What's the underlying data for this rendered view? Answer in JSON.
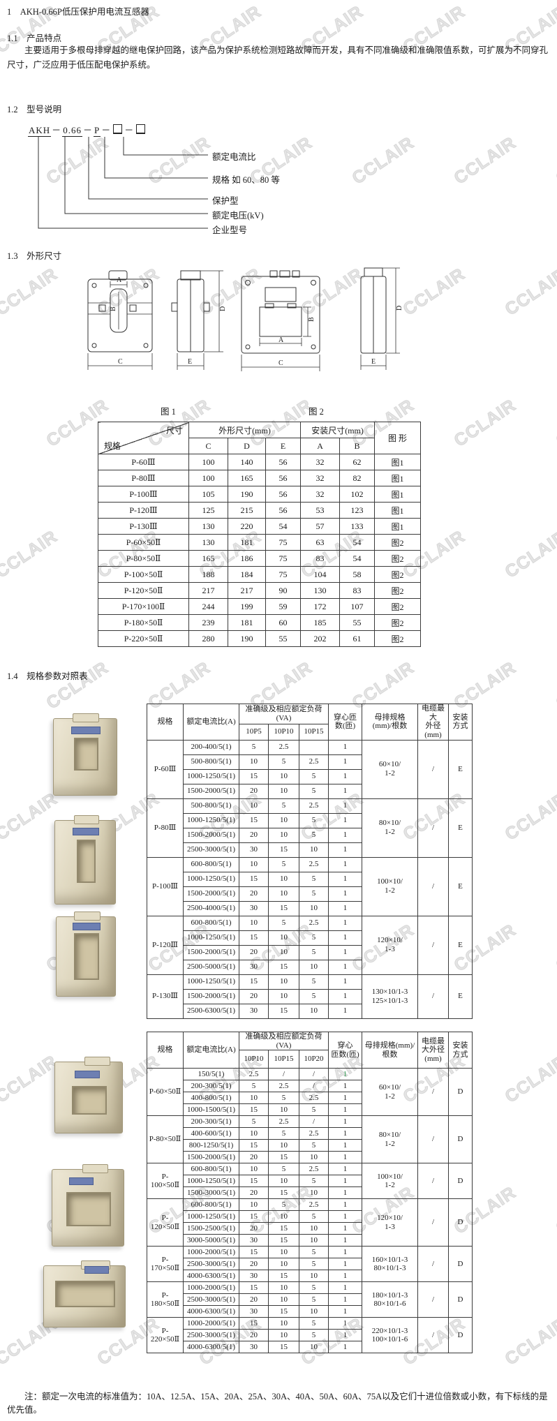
{
  "watermark": {
    "text": "CCLAIR"
  },
  "doc": {
    "title": "1　AKH-0.66P低压保护用电流互感器",
    "note": "注：额定一次电流的标准值为：10A、12.5A、15A、20A、25A、30A、40A、50A、60A、75A以及它们十进位倍数或小数，有下标线的是优先值。"
  },
  "section_1_1": {
    "heading": "1.1　产品特点",
    "paragraph": "主要适用于多根母排穿越的继电保护回路，该产品为保护系统检测短路故障而开发，具有不同准确级和准确限值系数，可扩展为不同穿孔尺寸，广泛应用于低压配电保护系统。"
  },
  "section_1_2": {
    "heading": "1.2　型号说明",
    "model_parts": [
      {
        "text": "AKH",
        "underline": true
      },
      {
        "text": "－"
      },
      {
        "text": "0.66",
        "underline": true
      },
      {
        "text": "－"
      },
      {
        "text": "P",
        "underline": true
      },
      {
        "text": "－"
      },
      {
        "box": true
      },
      {
        "text": "－"
      },
      {
        "box": true
      }
    ],
    "model_labels": [
      "额定电流比",
      "规格 如 60、80 等",
      "保护型",
      "额定电压(kV)",
      "企业型号"
    ]
  },
  "section_1_3": {
    "heading": "1.3　外形尺寸",
    "fig1_caption": "图 1",
    "fig2_caption": "图 2",
    "dims": {
      "A": "A",
      "B": "B",
      "C": "C",
      "D": "D",
      "E": "E"
    },
    "dim_table": {
      "corner_top": "尺寸",
      "corner_bottom": "规格",
      "group1": "外形尺寸(mm)",
      "group2": "安装尺寸(mm)",
      "cols": [
        "C",
        "D",
        "E",
        "A",
        "B"
      ],
      "last_col": "图 形",
      "rows": [
        [
          "P-60Ⅲ",
          "100",
          "140",
          "56",
          "32",
          "62",
          "图1"
        ],
        [
          "P-80Ⅲ",
          "100",
          "165",
          "56",
          "32",
          "82",
          "图1"
        ],
        [
          "P-100Ⅲ",
          "105",
          "190",
          "56",
          "32",
          "102",
          "图1"
        ],
        [
          "P-120Ⅲ",
          "125",
          "215",
          "56",
          "53",
          "123",
          "图1"
        ],
        [
          "P-130Ⅲ",
          "130",
          "220",
          "54",
          "57",
          "133",
          "图1"
        ],
        [
          "P-60×50Ⅱ",
          "130",
          "181",
          "75",
          "63",
          "54",
          "图2"
        ],
        [
          "P-80×50Ⅱ",
          "165",
          "186",
          "75",
          "83",
          "54",
          "图2"
        ],
        [
          "P-100×50Ⅱ",
          "188",
          "184",
          "75",
          "104",
          "58",
          "图2"
        ],
        [
          "P-120×50Ⅱ",
          "217",
          "217",
          "90",
          "130",
          "83",
          "图2"
        ],
        [
          "P-170×100Ⅱ",
          "244",
          "199",
          "59",
          "172",
          "107",
          "图2"
        ],
        [
          "P-180×50Ⅱ",
          "239",
          "181",
          "60",
          "185",
          "55",
          "图2"
        ],
        [
          "P-220×50Ⅱ",
          "280",
          "190",
          "55",
          "202",
          "61",
          "图2"
        ]
      ]
    }
  },
  "section_1_4": {
    "heading": "1.4　规格参数对照表",
    "spec_table1": {
      "headers": {
        "spec": "规格",
        "ratio": "额定电流比(A)",
        "accuracy": "准确级及相应额定负荷(VA)",
        "classes": [
          "10P5",
          "10P10",
          "10P15"
        ],
        "turns": "穿心匝\n数(匝)",
        "busbar": "母排规格\n(mm)/根数",
        "cable": "电缆最大\n外径(mm)",
        "install": "安装\n方式"
      },
      "groups": [
        {
          "spec": "P-60Ⅲ",
          "busbar": "60×10/\n1-2",
          "cable": "/",
          "install": "E",
          "rows": [
            [
              "200-400/5(1)",
              "5",
              "2.5",
              "",
              "1"
            ],
            [
              "500-800/5(1)",
              "10",
              "5",
              "2.5",
              "1"
            ],
            [
              "1000-1250/5(1)",
              "15",
              "10",
              "5",
              "1"
            ],
            [
              "1500-2000/5(1)",
              "20",
              "10",
              "5",
              "1"
            ]
          ]
        },
        {
          "spec": "P-80Ⅲ",
          "busbar": "80×10/\n1-2",
          "cable": "/",
          "install": "E",
          "rows": [
            [
              "500-800/5(1)",
              "10",
              "5",
              "2.5",
              "1"
            ],
            [
              "1000-1250/5(1)",
              "15",
              "10",
              "5",
              "1"
            ],
            [
              "1500-2000/5(1)",
              "20",
              "10",
              "5",
              "1"
            ],
            [
              "2500-3000/5(1)",
              "30",
              "15",
              "10",
              "1"
            ]
          ]
        },
        {
          "spec": "P-100Ⅲ",
          "busbar": "100×10/\n1-2",
          "cable": "/",
          "install": "E",
          "rows": [
            [
              "600-800/5(1)",
              "10",
              "5",
              "2.5",
              "1"
            ],
            [
              "1000-1250/5(1)",
              "15",
              "10",
              "5",
              "1"
            ],
            [
              "1500-2000/5(1)",
              "20",
              "10",
              "5",
              "1"
            ],
            [
              "2500-4000/5(1)",
              "30",
              "15",
              "10",
              "1"
            ]
          ]
        },
        {
          "spec": "P-120Ⅲ",
          "busbar": "120×10/\n1-3",
          "cable": "/",
          "install": "E",
          "rows": [
            [
              "600-800/5(1)",
              "10",
              "5",
              "2.5",
              "1"
            ],
            [
              "1000-1250/5(1)",
              "15",
              "10",
              "5",
              "1"
            ],
            [
              "1500-2000/5(1)",
              "20",
              "10",
              "5",
              "1"
            ],
            [
              "2500-5000/5(1)",
              "30",
              "15",
              "10",
              "1"
            ]
          ]
        },
        {
          "spec": "P-130Ⅲ",
          "busbar": "130×10/1-3\n125×10/1-3",
          "cable": "/",
          "install": "E",
          "rows": [
            [
              "1000-1250/5(1)",
              "15",
              "10",
              "5",
              "1"
            ],
            [
              "1500-2000/5(1)",
              "20",
              "10",
              "5",
              "1"
            ],
            [
              "2500-6300/5(1)",
              "30",
              "15",
              "10",
              "1"
            ]
          ]
        }
      ]
    },
    "spec_table2": {
      "headers": {
        "spec": "规格",
        "ratio": "额定电流比(A)",
        "accuracy": "准确级及相应额定负荷(VA)",
        "classes": [
          "10P10",
          "10P15",
          "10P20"
        ],
        "turns": "穿心\n匝数(匝)",
        "busbar": "母排规格(mm)/\n根数",
        "cable": "电缆最\n大外径\n(mm)",
        "install": "安装\n方式"
      },
      "highlight": {
        "group": 0,
        "row": 0,
        "color": "#2e9e50"
      },
      "groups": [
        {
          "spec": "P-60×50Ⅱ",
          "busbar": "60×10/\n1-2",
          "cable": "/",
          "install": "D",
          "rows": [
            [
              "150/5(1)",
              "2.5",
              "/",
              "/",
              "1"
            ],
            [
              "200-300/5(1)",
              "5",
              "2.5",
              "/",
              "1"
            ],
            [
              "400-800/5(1)",
              "10",
              "5",
              "2.5",
              "1"
            ],
            [
              "1000-1500/5(1)",
              "15",
              "10",
              "5",
              "1"
            ]
          ]
        },
        {
          "spec": "P-80×50Ⅱ",
          "busbar": "80×10/\n1-2",
          "cable": "/",
          "install": "D",
          "rows": [
            [
              "200-300/5(1)",
              "5",
              "2.5",
              "/",
              "1"
            ],
            [
              "400-600/5(1)",
              "10",
              "5",
              "2.5",
              "1"
            ],
            [
              "800-1250/5(1)",
              "15",
              "10",
              "5",
              "1"
            ],
            [
              "1500-2000/5(1)",
              "20",
              "15",
              "10",
              "1"
            ]
          ]
        },
        {
          "spec": "P-100×50Ⅱ",
          "busbar": "100×10/\n1-2",
          "cable": "/",
          "install": "D",
          "rows": [
            [
              "600-800/5(1)",
              "10",
              "5",
              "2.5",
              "1"
            ],
            [
              "1000-1250/5(1)",
              "15",
              "10",
              "5",
              "1"
            ],
            [
              "1500-3000/5(1)",
              "20",
              "15",
              "10",
              "1"
            ]
          ]
        },
        {
          "spec": "P-120×50Ⅱ",
          "busbar": "120×10/\n1-3",
          "cable": "/",
          "install": "D",
          "rows": [
            [
              "600-800/5(1)",
              "10",
              "5",
              "2.5",
              "1"
            ],
            [
              "1000-1250/5(1)",
              "15",
              "10",
              "5",
              "1"
            ],
            [
              "1500-2500/5(1)",
              "20",
              "15",
              "10",
              "1"
            ],
            [
              "3000-5000/5(1)",
              "30",
              "15",
              "10",
              "1"
            ]
          ]
        },
        {
          "spec": "P-170×50Ⅱ",
          "busbar": "160×10/1-3\n80×10/1-3",
          "cable": "/",
          "install": "D",
          "rows": [
            [
              "1000-2000/5(1)",
              "15",
              "10",
              "5",
              "1"
            ],
            [
              "2500-3000/5(1)",
              "20",
              "10",
              "5",
              "1"
            ],
            [
              "4000-6300/5(1)",
              "30",
              "15",
              "10",
              "1"
            ]
          ]
        },
        {
          "spec": "P-180×50Ⅱ",
          "busbar": "180×10/1-3\n80×10/1-6",
          "cable": "/",
          "install": "D",
          "rows": [
            [
              "1000-2000/5(1)",
              "15",
              "10",
              "5",
              "1"
            ],
            [
              "2500-3000/5(1)",
              "20",
              "10",
              "5",
              "1"
            ],
            [
              "4000-6300/5(1)",
              "30",
              "15",
              "10",
              "1"
            ]
          ]
        },
        {
          "spec": "P-220×50Ⅱ",
          "busbar": "220×10/1-3\n100×10/1-6",
          "cable": "/",
          "install": "D",
          "rows": [
            [
              "1000-2000/5(1)",
              "15",
              "10",
              "5",
              "1"
            ],
            [
              "2500-3000/5(1)",
              "20",
              "10",
              "5",
              "1"
            ],
            [
              "4000-6300/5(1)",
              "30",
              "15",
              "10",
              "1"
            ]
          ]
        }
      ]
    }
  }
}
